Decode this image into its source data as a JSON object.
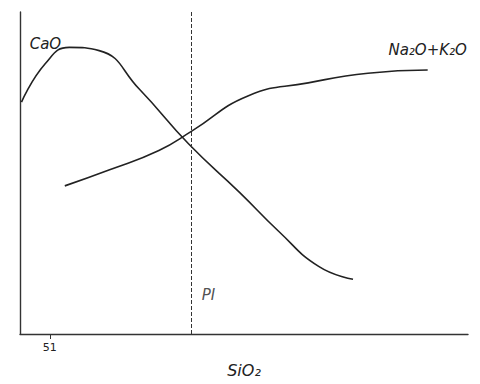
{
  "chart_data": {
    "type": "line",
    "x_label": "SiO₂",
    "series": [
      {
        "name": "CaO",
        "color": "#222222",
        "line_style": "solid",
        "x": [
          49.1,
          50.7,
          52.3,
          54.3,
          57,
          60.3,
          63.7,
          66.3,
          69,
          71.3
        ],
        "values": [
          7.2,
          8.4,
          8.9,
          8.8,
          7.6,
          5.9,
          4.4,
          3.2,
          2.1,
          1.7
        ]
      },
      {
        "name": "Na₂O+K₂O",
        "color": "#222222",
        "line_style": "solid",
        "x": [
          52,
          55,
          58.3,
          60.5,
          64.3,
          68.3,
          72.3,
          76.3
        ],
        "values": [
          4.6,
          5.1,
          5.7,
          6.3,
          7.4,
          7.8,
          8.1,
          8.2
        ]
      }
    ],
    "annotations": [
      {
        "text": "PI",
        "x": 60.5
      }
    ],
    "xlim": [
      49,
      79
    ],
    "xticks": [
      51
    ],
    "ylim": [
      0,
      10
    ],
    "yticks": [],
    "tick_labels": "x",
    "grid": false
  }
}
